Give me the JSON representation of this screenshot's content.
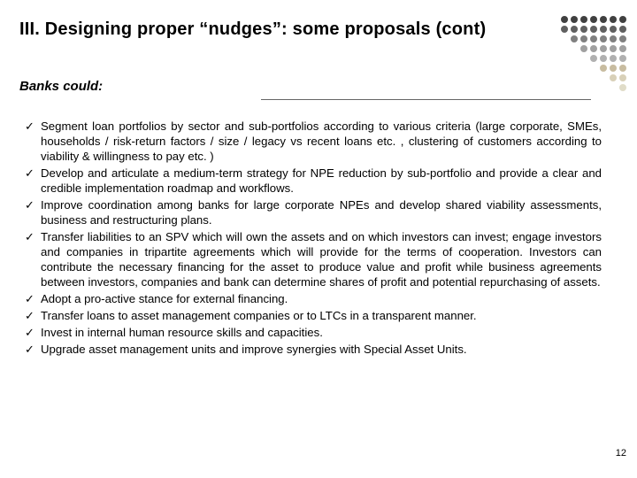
{
  "title": "III. Designing proper “nudges”: some proposals (cont)",
  "subhead": "Banks could:",
  "bullets": [
    "Segment loan portfolios by sector and sub-portfolios according to various criteria (large corporate, SMEs, households / risk-return factors / size / legacy vs recent loans etc. , clustering of customers according to viability & willingness to pay etc. )",
    "Develop and articulate a medium-term strategy for NPE reduction by sub-portfolio and provide a clear and credible implementation roadmap  and workflows.",
    "Improve coordination among banks for large corporate NPEs and develop shared viability assessments, business and restructuring plans.",
    "Transfer liabilities to an SPV which will own the assets and on which investors can invest; engage investors and companies in tripartite agreements which will provide for the terms of cooperation. Investors can contribute the necessary financing for the asset to produce value and profit while  business agreements between investors, companies and bank can determine shares of profit and potential repurchasing of assets.",
    "Adopt a pro-active stance for external financing.",
    "Transfer loans to asset management companies or to LTCs in a transparent manner.",
    "Invest in internal human resource skills and capacities.",
    "Upgrade asset management units and improve synergies with Special Asset Units."
  ],
  "page_number": "12",
  "deco": {
    "dot_size": 8,
    "gap": 3,
    "rows": [
      [
        "#404040",
        "#404040",
        "#404040",
        "#404040",
        "#404040",
        "#404040",
        "#404040"
      ],
      [
        "#606060",
        "#606060",
        "#606060",
        "#606060",
        "#606060",
        "#606060",
        "#606060"
      ],
      [
        "#808080",
        "#808080",
        "#808080",
        "#808080",
        "#808080",
        "#808080"
      ],
      [
        "#a0a0a0",
        "#a0a0a0",
        "#a0a0a0",
        "#a0a0a0",
        "#a0a0a0"
      ],
      [
        "#b0b0b0",
        "#b0b0b0",
        "#b0b0b0",
        "#b0b0b0"
      ],
      [
        "#c8bca0",
        "#c8bca0",
        "#c8bca0"
      ],
      [
        "#d8d0b8",
        "#d8d0b8"
      ],
      [
        "#e0dcc8"
      ]
    ]
  }
}
